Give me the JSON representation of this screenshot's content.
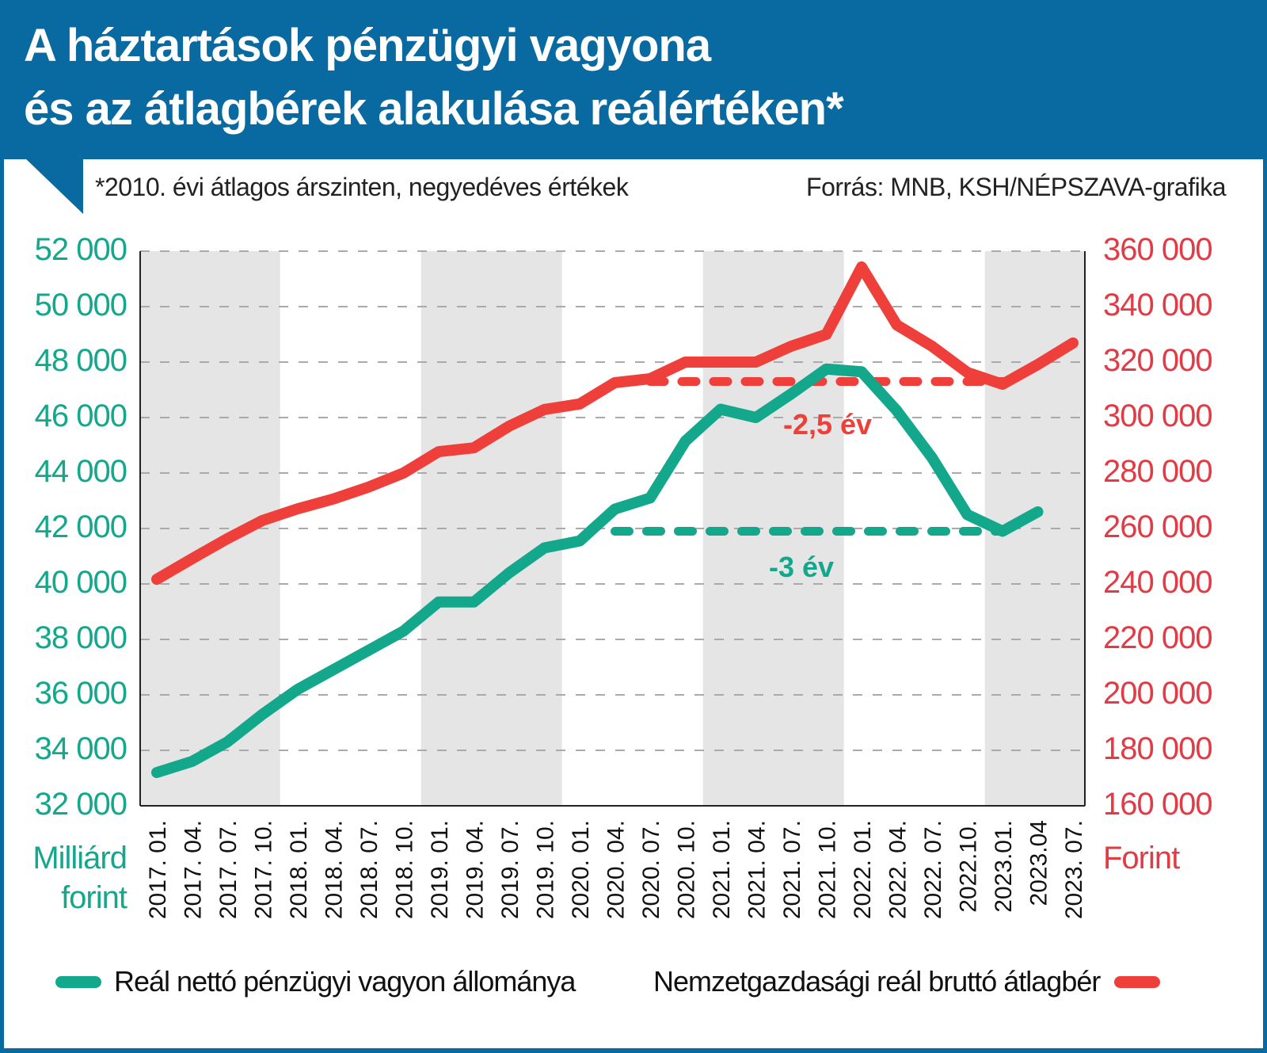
{
  "header": {
    "title_line1": "A háztartások pénzügyi vagyona",
    "title_line2": "és az átlagbérek alakulása reálértéken*",
    "subtitle": "*2010. évi átlagos árszinten, negyedéves értékek",
    "source": "Forrás: MNB, KSH/NÉPSZAVA-grafika"
  },
  "colors": {
    "header_bg": "#086aa0",
    "wealth_series": "#13a88b",
    "wage_series": "#ef3f3b",
    "right_axis_text": "#e33b45",
    "band_fill": "#e5e5e5"
  },
  "chart_data": {
    "type": "line",
    "title": "A háztartások pénzügyi vagyona és az átlagbérek alakulása reálértéken*",
    "subtitle": "*2010. évi átlagos árszinten, negyedéves értékek",
    "x": [
      "2017. 01.",
      "2017. 04.",
      "2017. 07.",
      "2017. 10.",
      "2018. 01.",
      "2018. 04.",
      "2018. 07.",
      "2018. 10.",
      "2019. 01.",
      "2019. 04.",
      "2019. 07.",
      "2019. 10.",
      "2020. 01.",
      "2020. 04.",
      "2020. 07.",
      "2020. 10.",
      "2021. 01.",
      "2021. 04.",
      "2021. 07.",
      "2021. 10.",
      "2022. 01.",
      "2022. 04.",
      "2022. 07.",
      "2022.10.",
      "2023.01.",
      "2023.04",
      "2023. 07."
    ],
    "xlabel": "",
    "y_left": {
      "label": "Milliárd forint",
      "label_lines": [
        "Milliárd",
        "forint"
      ],
      "ylim": [
        32000,
        52000
      ],
      "ticks": [
        52000,
        50000,
        48000,
        46000,
        44000,
        42000,
        40000,
        38000,
        36000,
        34000,
        32000
      ],
      "tick_labels": [
        "52 000",
        "50 000",
        "48 000",
        "46 000",
        "44 000",
        "42 000",
        "40 000",
        "38 000",
        "36 000",
        "34 000",
        "32 000"
      ]
    },
    "y_right": {
      "label": "Forint",
      "ylim": [
        160000,
        360000
      ],
      "ticks": [
        360000,
        340000,
        320000,
        300000,
        280000,
        260000,
        240000,
        220000,
        200000,
        180000,
        160000
      ],
      "tick_labels": [
        "360 000",
        "340 000",
        "320 000",
        "300 000",
        "280 000",
        "260 000",
        "240 000",
        "220 000",
        "200 000",
        "180 000",
        "160 000"
      ]
    },
    "grid": true,
    "shaded_years": [
      "2017",
      "2019",
      "2021",
      "2023"
    ],
    "series": [
      {
        "name": "Reál nettó pénzügyi vagyon állománya",
        "axis": "left",
        "color": "#13a88b",
        "values": [
          33200,
          33600,
          34300,
          35300,
          36200,
          36900,
          37600,
          38300,
          39350,
          39350,
          40400,
          41300,
          41550,
          42700,
          43100,
          45150,
          46300,
          46000,
          46850,
          47750,
          47650,
          46250,
          44550,
          42500,
          41900,
          42600,
          null
        ]
      },
      {
        "name": "Nemzetgazdasági reál bruttó átlagbér",
        "axis": "right",
        "color": "#ef3f3b",
        "values": [
          241700,
          249100,
          256300,
          262900,
          267100,
          270600,
          274900,
          280000,
          287700,
          289100,
          296900,
          302900,
          304900,
          312600,
          314000,
          320000,
          320000,
          320000,
          325700,
          330000,
          354300,
          333400,
          325700,
          316300,
          312000,
          319100,
          326900
        ]
      }
    ],
    "reference_lines": [
      {
        "series": "Nemzetgazdasági reál bruttó átlagbér",
        "axis": "right",
        "value": 313000,
        "from": "2020. 07.",
        "to": "2023.01.",
        "label": "-2,5 év",
        "color": "#ef3f3b"
      },
      {
        "series": "Reál nettó pénzügyi vagyon állománya",
        "axis": "left",
        "value": 41900,
        "from": "2020. 04.",
        "to": "2023.01.",
        "label": "-3 év",
        "color": "#13a88b"
      }
    ],
    "legend": {
      "placement": "bottom",
      "items": [
        {
          "label": "Reál nettó pénzügyi vagyon állománya",
          "color": "#13a88b"
        },
        {
          "label": "Nemzetgazdasági reál bruttó átlagbér",
          "color": "#ef3f3b"
        }
      ]
    }
  }
}
